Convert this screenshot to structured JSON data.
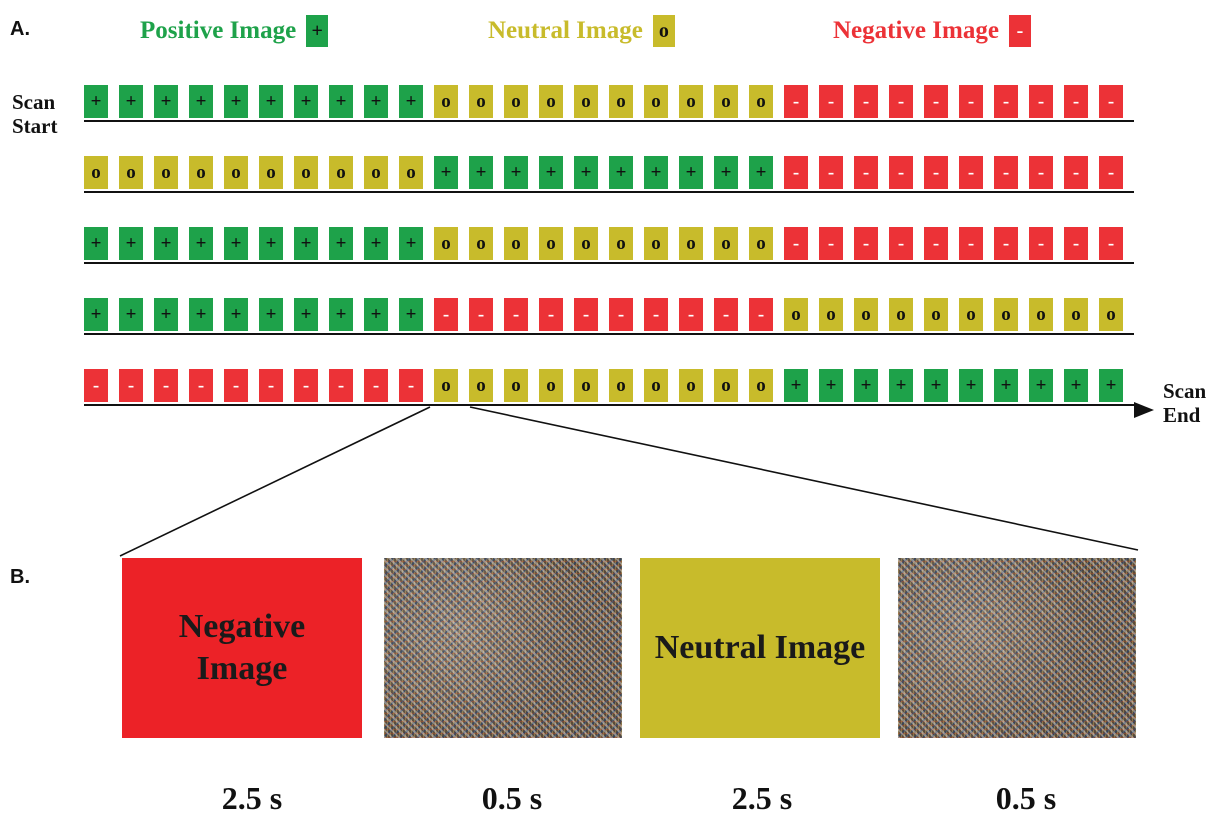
{
  "panels": {
    "a": "A.",
    "b": "B."
  },
  "legend": [
    {
      "label": "Positive Image",
      "symbol": "+",
      "color": "#1ea24a"
    },
    {
      "label": "Neutral Image",
      "symbol": "o",
      "color": "#c8bb2b"
    },
    {
      "label": "Negative Image",
      "symbol": "-",
      "color": "#ec3237"
    }
  ],
  "scan_start": "Scan Start",
  "scan_end": "Scan End",
  "runs": [
    [
      "positive",
      "neutral",
      "negative"
    ],
    [
      "neutral",
      "positive",
      "negative"
    ],
    [
      "positive",
      "neutral",
      "negative"
    ],
    [
      "positive",
      "negative",
      "neutral"
    ],
    [
      "negative",
      "neutral",
      "positive"
    ]
  ],
  "blocks_per_condition": 10,
  "symbols": {
    "positive": "+",
    "neutral": "o",
    "negative": "-"
  },
  "stimuli": [
    {
      "label": "Negative Image",
      "kind": "negative",
      "duration": "2.5 s"
    },
    {
      "label": "",
      "kind": "scrambled",
      "duration": "0.5 s"
    },
    {
      "label": "Neutral Image",
      "kind": "neutral",
      "duration": "2.5 s"
    },
    {
      "label": "",
      "kind": "scrambled",
      "duration": "0.5 s"
    }
  ]
}
